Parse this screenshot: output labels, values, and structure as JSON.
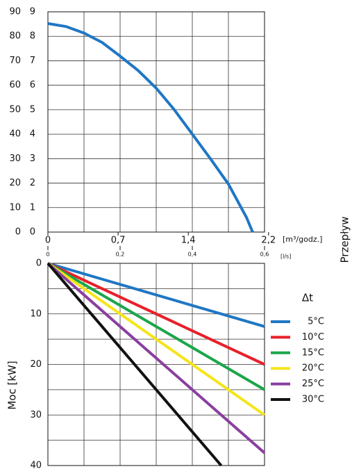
{
  "chart_data": [
    {
      "type": "line",
      "xlim": [
        0,
        0.6
      ],
      "xticks": [
        0,
        {
          "value": 0.2,
          "label": "0,2"
        },
        {
          "value": 0.4,
          "label": "0,4"
        },
        {
          "value": 0.6,
          "label": "0,6"
        }
      ],
      "xgrid": [
        0,
        0.1,
        0.2,
        0.3,
        0.4,
        0.5,
        0.6
      ],
      "x_label": "[l/s]",
      "x2lim": [
        0,
        2.16
      ],
      "x2ticks": [
        0,
        {
          "value": 0.7,
          "label": "0,7"
        },
        {
          "value": 1.4,
          "label": "1,4"
        },
        {
          "value": 2.2,
          "label": "2,2"
        }
      ],
      "x2_label": "[m³/godz.]",
      "ylim": [
        0,
        90
      ],
      "yticks": [
        0,
        10,
        20,
        30,
        40,
        50,
        60,
        70,
        80,
        90
      ],
      "y2lim": [
        0,
        9
      ],
      "y2ticks": [
        0,
        1,
        2,
        3,
        4,
        5,
        6,
        7,
        8,
        9
      ],
      "grid": true,
      "series": [
        {
          "color": "#1f77c4",
          "x": [
            0,
            0.05,
            0.1,
            0.15,
            0.2,
            0.25,
            0.3,
            0.35,
            0.4,
            0.45,
            0.5,
            0.55,
            0.567
          ],
          "values": [
            85.2,
            84,
            81.3,
            77.5,
            71.9,
            66,
            58.8,
            50,
            40,
            30,
            19.6,
            6,
            0
          ]
        }
      ]
    },
    {
      "type": "line",
      "xlim": [
        0,
        0.6
      ],
      "xgrid": [
        0,
        0.1,
        0.2,
        0.3,
        0.4,
        0.5,
        0.6
      ],
      "ylim": [
        0,
        40
      ],
      "y_inverted": true,
      "yticks": [
        0,
        10,
        20,
        30,
        40
      ],
      "ygrid": [
        0,
        5,
        10,
        15,
        20,
        25,
        30,
        35,
        40
      ],
      "y_label": "Moc [kW]",
      "legend_title": "Δt",
      "grid": true,
      "series": [
        {
          "name": "5°C",
          "color": "#1f77c4",
          "x": [
            0,
            0.6
          ],
          "values": [
            0,
            12.5
          ]
        },
        {
          "name": "10°C",
          "color": "#e8202a",
          "x": [
            0,
            0.6
          ],
          "values": [
            0,
            20
          ]
        },
        {
          "name": "15°C",
          "color": "#1aa64a",
          "x": [
            0,
            0.6
          ],
          "values": [
            0,
            25
          ]
        },
        {
          "name": "20°C",
          "color": "#f5e51a",
          "x": [
            0,
            0.6
          ],
          "values": [
            0,
            30
          ]
        },
        {
          "name": "25°C",
          "color": "#8a3fa0",
          "x": [
            0,
            0.6
          ],
          "values": [
            0,
            37.5
          ]
        },
        {
          "name": "30°C",
          "color": "#111111",
          "x": [
            0,
            0.48
          ],
          "values": [
            0,
            40
          ]
        }
      ]
    }
  ],
  "side_label": "Przepływ"
}
